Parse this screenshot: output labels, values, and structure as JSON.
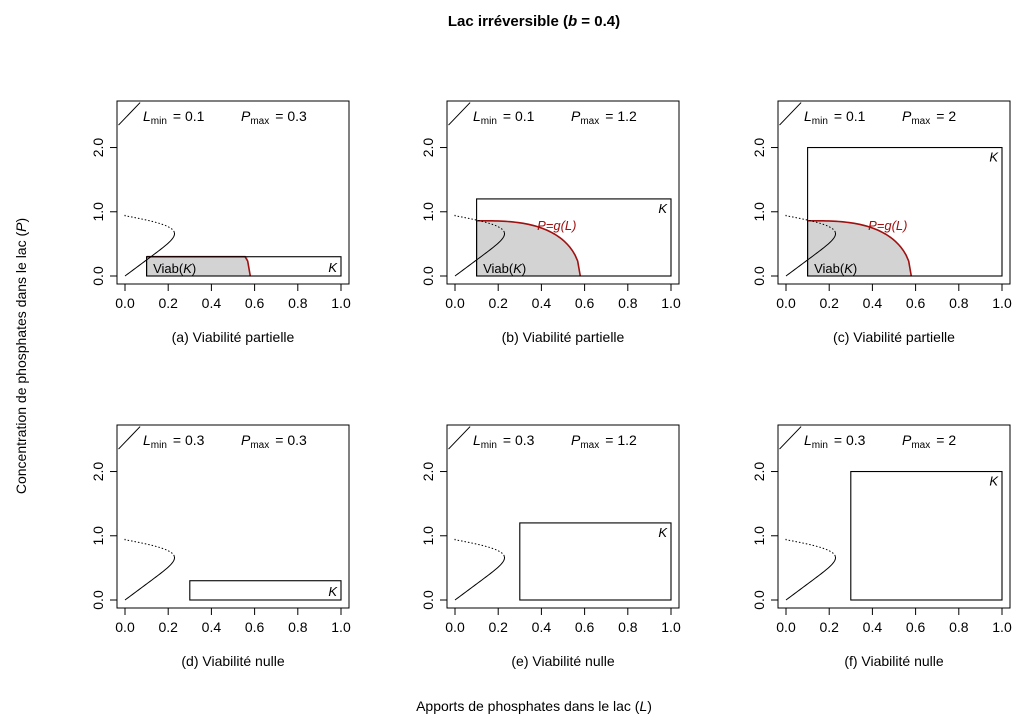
{
  "figure": {
    "title": "Lac irréversible",
    "title_param": "(b = 0.4)",
    "xlabel": "Apports de phosphates dans le lac  (L)",
    "ylabel": "Concentration de phosphates dans le lac  (P)"
  },
  "colors": {
    "curve_g": "#a01010",
    "viab_fill": "#d3d3d3",
    "ink": "#000000"
  },
  "chart_data": [
    {
      "type": "line",
      "id": "a",
      "caption": "(a)  Viabilité partielle",
      "lmin_label": "L",
      "lmin_sub": "min",
      "lmin_value": "= 0.1",
      "pmax_label": "P",
      "pmax_sub": "max",
      "pmax_value": "= 0.3",
      "Lmin": 0.1,
      "Pmax": 0.3,
      "viable": true,
      "box_label": "K",
      "viab_label": "Viab(K)",
      "g_label": "",
      "xlim": [
        0,
        1
      ],
      "ylim": [
        0,
        2.6
      ],
      "xticks": [
        "0.0",
        "0.2",
        "0.4",
        "0.6",
        "0.8",
        "1.0"
      ],
      "yticks": [
        "0.0",
        "1.0",
        "2.0"
      ]
    },
    {
      "type": "line",
      "id": "b",
      "caption": "(b)  Viabilité partielle",
      "lmin_label": "L",
      "lmin_sub": "min",
      "lmin_value": "= 0.1",
      "pmax_label": "P",
      "pmax_sub": "max",
      "pmax_value": "= 1.2",
      "Lmin": 0.1,
      "Pmax": 1.2,
      "viable": true,
      "box_label": "K",
      "viab_label": "Viab(K)",
      "g_label": "P=g(L)",
      "xlim": [
        0,
        1
      ],
      "ylim": [
        0,
        2.6
      ],
      "xticks": [
        "0.0",
        "0.2",
        "0.4",
        "0.6",
        "0.8",
        "1.0"
      ],
      "yticks": [
        "0.0",
        "1.0",
        "2.0"
      ]
    },
    {
      "type": "line",
      "id": "c",
      "caption": "(c)  Viabilité partielle",
      "lmin_label": "L",
      "lmin_sub": "min",
      "lmin_value": "= 0.1",
      "pmax_label": "P",
      "pmax_sub": "max",
      "pmax_value": "= 2",
      "Lmin": 0.1,
      "Pmax": 2.0,
      "viable": true,
      "box_label": "K",
      "viab_label": "Viab(K)",
      "g_label": "P=g(L)",
      "xlim": [
        0,
        1
      ],
      "ylim": [
        0,
        2.6
      ],
      "xticks": [
        "0.0",
        "0.2",
        "0.4",
        "0.6",
        "0.8",
        "1.0"
      ],
      "yticks": [
        "0.0",
        "1.0",
        "2.0"
      ]
    },
    {
      "type": "line",
      "id": "d",
      "caption": "(d)  Viabilité nulle",
      "lmin_label": "L",
      "lmin_sub": "min",
      "lmin_value": "= 0.3",
      "pmax_label": "P",
      "pmax_sub": "max",
      "pmax_value": "= 0.3",
      "Lmin": 0.3,
      "Pmax": 0.3,
      "viable": false,
      "box_label": "K",
      "viab_label": "",
      "g_label": "",
      "xlim": [
        0,
        1
      ],
      "ylim": [
        0,
        2.6
      ],
      "xticks": [
        "0.0",
        "0.2",
        "0.4",
        "0.6",
        "0.8",
        "1.0"
      ],
      "yticks": [
        "0.0",
        "1.0",
        "2.0"
      ]
    },
    {
      "type": "line",
      "id": "e",
      "caption": "(e)  Viabilité nulle",
      "lmin_label": "L",
      "lmin_sub": "min",
      "lmin_value": "= 0.3",
      "pmax_label": "P",
      "pmax_sub": "max",
      "pmax_value": "= 1.2",
      "Lmin": 0.3,
      "Pmax": 1.2,
      "viable": false,
      "box_label": "K",
      "viab_label": "",
      "g_label": "",
      "xlim": [
        0,
        1
      ],
      "ylim": [
        0,
        2.6
      ],
      "xticks": [
        "0.0",
        "0.2",
        "0.4",
        "0.6",
        "0.8",
        "1.0"
      ],
      "yticks": [
        "0.0",
        "1.0",
        "2.0"
      ]
    },
    {
      "type": "line",
      "id": "f",
      "caption": "(f)  Viabilité nulle",
      "lmin_label": "L",
      "lmin_sub": "min",
      "lmin_value": "= 0.3",
      "pmax_label": "P",
      "pmax_sub": "max",
      "pmax_value": "= 2",
      "Lmin": 0.3,
      "Pmax": 2.0,
      "viable": false,
      "box_label": "K",
      "viab_label": "",
      "g_label": "",
      "xlim": [
        0,
        1
      ],
      "ylim": [
        0,
        2.6
      ],
      "xticks": [
        "0.0",
        "0.2",
        "0.4",
        "0.6",
        "0.8",
        "1.0"
      ],
      "yticks": [
        "0.0",
        "1.0",
        "2.0"
      ]
    }
  ]
}
